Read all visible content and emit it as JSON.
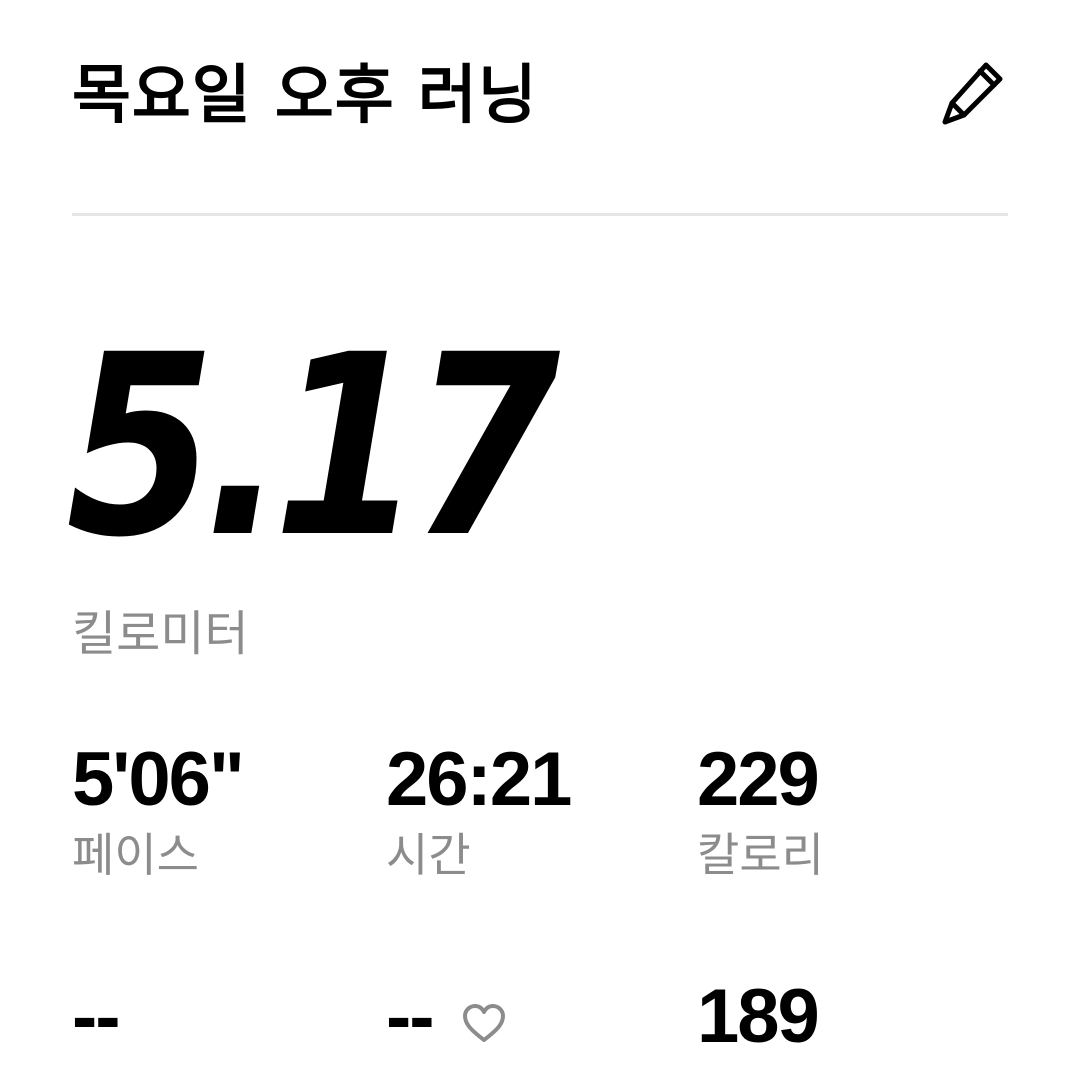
{
  "header": {
    "title": "목요일 오후 러닝",
    "edit_icon": "pencil-icon"
  },
  "summary": {
    "distance_value": "5.17",
    "distance_unit": "킬로미터"
  },
  "stats": [
    {
      "value": "5'06\"",
      "label": "페이스"
    },
    {
      "value": "26:21",
      "label": "시간"
    },
    {
      "value": "229",
      "label": "칼로리"
    }
  ],
  "stats_row2": [
    {
      "value": "--"
    },
    {
      "value": "--",
      "icon": "heart-icon"
    },
    {
      "value": "189"
    }
  ],
  "colors": {
    "primary_text": "#000000",
    "secondary_text": "#8c8c8c",
    "divider": "#e6e6e6",
    "icon_gray": "#8c8c8c"
  }
}
